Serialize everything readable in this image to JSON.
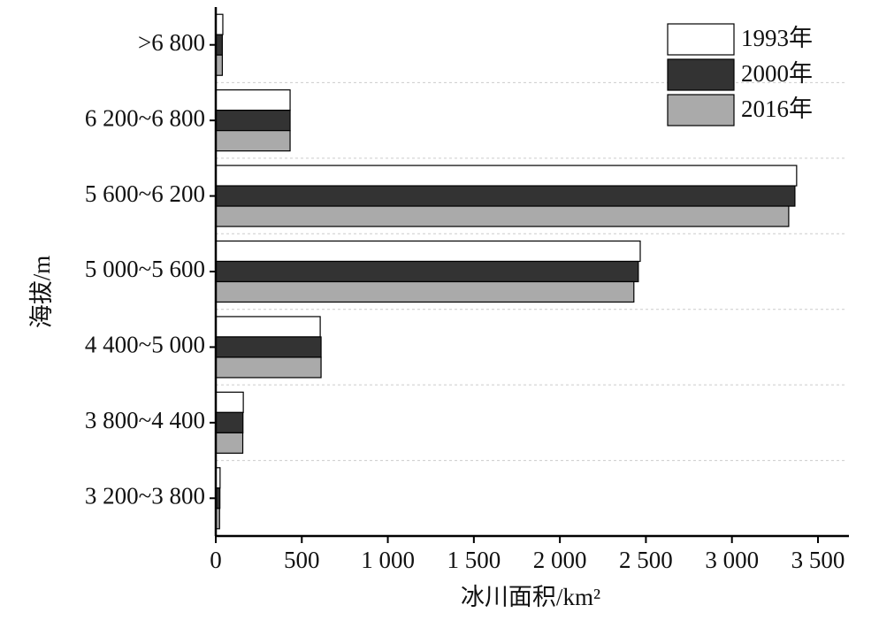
{
  "chart_data": {
    "type": "hbar",
    "x_label": "冰川面积/km²",
    "y_label": "海拔/m",
    "categories": [
      "3 200~3 800",
      "3 800~4 400",
      "4 400~5 000",
      "5 000~5 600",
      "5 600~6 200",
      "6 200~6 800",
      ">6 800"
    ],
    "series": [
      {
        "name": "1993年",
        "color": "#ffffff",
        "values": [
          25,
          160,
          607,
          2467,
          3376,
          432,
          41
        ]
      },
      {
        "name": "2000年",
        "color": "#333333",
        "values": [
          24,
          158,
          612,
          2456,
          3366,
          432,
          38
        ]
      },
      {
        "name": "2016年",
        "color": "#aaaaaa",
        "values": [
          22,
          157,
          612,
          2430,
          3330,
          432,
          38
        ]
      }
    ],
    "xlim": [
      0,
      3680
    ],
    "xticks": [
      0,
      500,
      {
        "value": 1000,
        "label": "1 000"
      },
      {
        "value": 1500,
        "label": "1 500"
      },
      {
        "value": 2000,
        "label": "2 000"
      },
      {
        "value": 2500,
        "label": "2 500"
      },
      {
        "value": 3000,
        "label": "3 000"
      },
      {
        "value": 3500,
        "label": "3 500"
      }
    ],
    "grid": true,
    "legend": "upper right"
  }
}
